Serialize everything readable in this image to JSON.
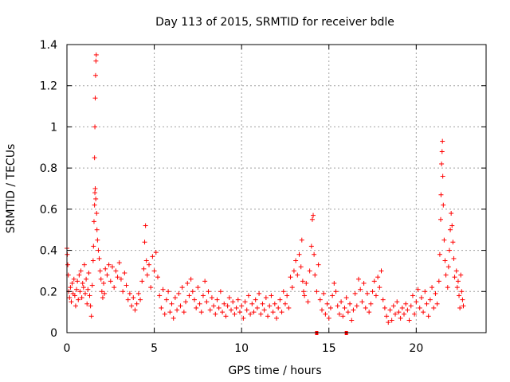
{
  "chart_data": {
    "type": "scatter",
    "title": "Day 113 of 2015, SRMTID for receiver bdle",
    "xlabel": "GPS time / hours",
    "ylabel": "SRMTID / TECUs",
    "xlim": [
      0,
      24
    ],
    "ylim": [
      0,
      1.4
    ],
    "xticks": [
      0,
      5,
      10,
      15,
      20
    ],
    "xtick_labels": [
      "0",
      "5",
      "10",
      "15",
      "20"
    ],
    "yticks": [
      0,
      0.2,
      0.4,
      0.6,
      0.8,
      1.0,
      1.2,
      1.4
    ],
    "ytick_labels": [
      "0",
      "0.2",
      "0.4",
      "0.6",
      "0.8",
      "1",
      "1.2",
      "1.4"
    ],
    "grid": true,
    "marker": "+",
    "color": "#ff0000",
    "series": [
      {
        "name": "SRMTID",
        "points": [
          [
            0.0,
            0.41
          ],
          [
            0.02,
            0.38
          ],
          [
            0.05,
            0.33
          ],
          [
            0.08,
            0.28
          ],
          [
            0.1,
            0.2
          ],
          [
            0.15,
            0.17
          ],
          [
            0.2,
            0.22
          ],
          [
            0.25,
            0.15
          ],
          [
            0.3,
            0.24
          ],
          [
            0.35,
            0.19
          ],
          [
            0.4,
            0.26
          ],
          [
            0.45,
            0.18
          ],
          [
            0.5,
            0.13
          ],
          [
            0.55,
            0.21
          ],
          [
            0.6,
            0.25
          ],
          [
            0.65,
            0.16
          ],
          [
            0.7,
            0.28
          ],
          [
            0.75,
            0.2
          ],
          [
            0.8,
            0.3
          ],
          [
            0.85,
            0.17
          ],
          [
            0.9,
            0.24
          ],
          [
            0.95,
            0.22
          ],
          [
            1.0,
            0.33
          ],
          [
            1.05,
            0.19
          ],
          [
            1.1,
            0.26
          ],
          [
            1.15,
            0.14
          ],
          [
            1.2,
            0.21
          ],
          [
            1.25,
            0.29
          ],
          [
            1.3,
            0.18
          ],
          [
            1.35,
            0.13
          ],
          [
            1.4,
            0.08
          ],
          [
            1.45,
            0.23
          ],
          [
            1.5,
            0.35
          ],
          [
            1.52,
            0.42
          ],
          [
            1.55,
            0.54
          ],
          [
            1.58,
            0.62
          ],
          [
            1.6,
            0.68
          ],
          [
            1.62,
            0.7
          ],
          [
            1.65,
            0.65
          ],
          [
            1.58,
            0.85
          ],
          [
            1.6,
            1.0
          ],
          [
            1.62,
            1.14
          ],
          [
            1.64,
            1.25
          ],
          [
            1.66,
            1.32
          ],
          [
            1.68,
            1.35
          ],
          [
            1.7,
            0.58
          ],
          [
            1.72,
            0.5
          ],
          [
            1.75,
            0.45
          ],
          [
            1.8,
            0.4
          ],
          [
            1.85,
            0.36
          ],
          [
            1.9,
            0.3
          ],
          [
            1.95,
            0.26
          ],
          [
            2.0,
            0.2
          ],
          [
            2.05,
            0.17
          ],
          [
            2.1,
            0.24
          ],
          [
            2.15,
            0.19
          ],
          [
            2.2,
            0.31
          ],
          [
            2.3,
            0.28
          ],
          [
            2.4,
            0.33
          ],
          [
            2.5,
            0.25
          ],
          [
            2.6,
            0.32
          ],
          [
            2.7,
            0.22
          ],
          [
            2.8,
            0.3
          ],
          [
            2.9,
            0.27
          ],
          [
            3.0,
            0.34
          ],
          [
            3.1,
            0.26
          ],
          [
            3.2,
            0.2
          ],
          [
            3.3,
            0.29
          ],
          [
            3.4,
            0.23
          ],
          [
            3.5,
            0.16
          ],
          [
            3.6,
            0.19
          ],
          [
            3.7,
            0.13
          ],
          [
            3.8,
            0.17
          ],
          [
            3.9,
            0.11
          ],
          [
            4.0,
            0.14
          ],
          [
            4.1,
            0.19
          ],
          [
            4.2,
            0.16
          ],
          [
            4.3,
            0.25
          ],
          [
            4.4,
            0.31
          ],
          [
            4.45,
            0.44
          ],
          [
            4.5,
            0.52
          ],
          [
            4.55,
            0.35
          ],
          [
            4.6,
            0.28
          ],
          [
            4.7,
            0.33
          ],
          [
            4.8,
            0.22
          ],
          [
            4.9,
            0.37
          ],
          [
            5.0,
            0.3
          ],
          [
            5.1,
            0.39
          ],
          [
            5.2,
            0.27
          ],
          [
            5.3,
            0.18
          ],
          [
            5.4,
            0.12
          ],
          [
            5.5,
            0.21
          ],
          [
            5.6,
            0.09
          ],
          [
            5.7,
            0.16
          ],
          [
            5.8,
            0.2
          ],
          [
            5.9,
            0.1
          ],
          [
            6.0,
            0.14
          ],
          [
            6.1,
            0.07
          ],
          [
            6.2,
            0.17
          ],
          [
            6.3,
            0.11
          ],
          [
            6.4,
            0.19
          ],
          [
            6.5,
            0.13
          ],
          [
            6.6,
            0.22
          ],
          [
            6.7,
            0.1
          ],
          [
            6.8,
            0.15
          ],
          [
            6.9,
            0.24
          ],
          [
            7.0,
            0.18
          ],
          [
            7.1,
            0.26
          ],
          [
            7.2,
            0.2
          ],
          [
            7.3,
            0.16
          ],
          [
            7.4,
            0.12
          ],
          [
            7.5,
            0.22
          ],
          [
            7.6,
            0.14
          ],
          [
            7.7,
            0.1
          ],
          [
            7.8,
            0.18
          ],
          [
            7.9,
            0.25
          ],
          [
            8.0,
            0.15
          ],
          [
            8.1,
            0.2
          ],
          [
            8.2,
            0.11
          ],
          [
            8.3,
            0.17
          ],
          [
            8.4,
            0.13
          ],
          [
            8.5,
            0.09
          ],
          [
            8.6,
            0.16
          ],
          [
            8.7,
            0.12
          ],
          [
            8.8,
            0.2
          ],
          [
            8.9,
            0.1
          ],
          [
            9.0,
            0.14
          ],
          [
            9.1,
            0.08
          ],
          [
            9.2,
            0.13
          ],
          [
            9.3,
            0.17
          ],
          [
            9.4,
            0.11
          ],
          [
            9.5,
            0.15
          ],
          [
            9.6,
            0.09
          ],
          [
            9.7,
            0.12
          ],
          [
            9.8,
            0.16
          ],
          [
            9.9,
            0.1
          ],
          [
            10.0,
            0.13
          ],
          [
            10.1,
            0.07
          ],
          [
            10.2,
            0.15
          ],
          [
            10.3,
            0.11
          ],
          [
            10.4,
            0.18
          ],
          [
            10.5,
            0.09
          ],
          [
            10.6,
            0.14
          ],
          [
            10.7,
            0.1
          ],
          [
            10.8,
            0.16
          ],
          [
            10.9,
            0.12
          ],
          [
            11.0,
            0.19
          ],
          [
            11.1,
            0.09
          ],
          [
            11.2,
            0.14
          ],
          [
            11.3,
            0.11
          ],
          [
            11.4,
            0.17
          ],
          [
            11.5,
            0.08
          ],
          [
            11.6,
            0.13
          ],
          [
            11.7,
            0.18
          ],
          [
            11.8,
            0.1
          ],
          [
            11.9,
            0.14
          ],
          [
            12.0,
            0.07
          ],
          [
            12.1,
            0.12
          ],
          [
            12.2,
            0.16
          ],
          [
            12.3,
            0.1
          ],
          [
            12.4,
            0.2
          ],
          [
            12.5,
            0.14
          ],
          [
            12.6,
            0.18
          ],
          [
            12.7,
            0.12
          ],
          [
            12.8,
            0.27
          ],
          [
            12.9,
            0.22
          ],
          [
            13.0,
            0.3
          ],
          [
            13.1,
            0.35
          ],
          [
            13.2,
            0.28
          ],
          [
            13.3,
            0.38
          ],
          [
            13.4,
            0.32
          ],
          [
            13.45,
            0.45
          ],
          [
            13.5,
            0.25
          ],
          [
            13.55,
            0.2
          ],
          [
            13.6,
            0.18
          ],
          [
            13.7,
            0.24
          ],
          [
            13.8,
            0.15
          ],
          [
            13.9,
            0.3
          ],
          [
            14.0,
            0.42
          ],
          [
            14.05,
            0.55
          ],
          [
            14.1,
            0.57
          ],
          [
            14.15,
            0.38
          ],
          [
            14.2,
            0.28
          ],
          [
            14.3,
            0.2
          ],
          [
            14.4,
            0.33
          ],
          [
            14.5,
            0.16
          ],
          [
            14.6,
            0.11
          ],
          [
            14.7,
            0.19
          ],
          [
            14.8,
            0.09
          ],
          [
            14.9,
            0.14
          ],
          [
            15.0,
            0.07
          ],
          [
            15.1,
            0.12
          ],
          [
            15.2,
            0.18
          ],
          [
            15.3,
            0.24
          ],
          [
            15.4,
            0.2
          ],
          [
            15.5,
            0.13
          ],
          [
            15.6,
            0.09
          ],
          [
            15.7,
            0.15
          ],
          [
            15.8,
            0.08
          ],
          [
            15.9,
            0.12
          ],
          [
            16.0,
            0.17
          ],
          [
            16.1,
            0.1
          ],
          [
            16.2,
            0.14
          ],
          [
            16.3,
            0.06
          ],
          [
            16.4,
            0.11
          ],
          [
            16.5,
            0.19
          ],
          [
            16.6,
            0.13
          ],
          [
            16.7,
            0.26
          ],
          [
            16.8,
            0.21
          ],
          [
            16.9,
            0.15
          ],
          [
            17.0,
            0.24
          ],
          [
            17.1,
            0.12
          ],
          [
            17.2,
            0.19
          ],
          [
            17.3,
            0.1
          ],
          [
            17.4,
            0.14
          ],
          [
            17.5,
            0.2
          ],
          [
            17.6,
            0.25
          ],
          [
            17.7,
            0.18
          ],
          [
            17.8,
            0.27
          ],
          [
            17.9,
            0.22
          ],
          [
            18.0,
            0.3
          ],
          [
            18.1,
            0.16
          ],
          [
            18.2,
            0.12
          ],
          [
            18.3,
            0.08
          ],
          [
            18.4,
            0.05
          ],
          [
            18.5,
            0.11
          ],
          [
            18.6,
            0.06
          ],
          [
            18.7,
            0.13
          ],
          [
            18.8,
            0.09
          ],
          [
            18.9,
            0.15
          ],
          [
            19.0,
            0.1
          ],
          [
            19.1,
            0.07
          ],
          [
            19.2,
            0.12
          ],
          [
            19.3,
            0.09
          ],
          [
            19.4,
            0.14
          ],
          [
            19.5,
            0.11
          ],
          [
            19.6,
            0.06
          ],
          [
            19.7,
            0.13
          ],
          [
            19.8,
            0.18
          ],
          [
            19.9,
            0.09
          ],
          [
            20.0,
            0.15
          ],
          [
            20.1,
            0.21
          ],
          [
            20.2,
            0.12
          ],
          [
            20.3,
            0.17
          ],
          [
            20.4,
            0.1
          ],
          [
            20.5,
            0.2
          ],
          [
            20.6,
            0.14
          ],
          [
            20.7,
            0.08
          ],
          [
            20.8,
            0.16
          ],
          [
            20.9,
            0.22
          ],
          [
            21.0,
            0.12
          ],
          [
            21.1,
            0.19
          ],
          [
            21.2,
            0.14
          ],
          [
            21.3,
            0.25
          ],
          [
            21.35,
            0.38
          ],
          [
            21.4,
            0.55
          ],
          [
            21.42,
            0.67
          ],
          [
            21.45,
            0.82
          ],
          [
            21.48,
            0.88
          ],
          [
            21.5,
            0.93
          ],
          [
            21.52,
            0.76
          ],
          [
            21.55,
            0.62
          ],
          [
            21.6,
            0.45
          ],
          [
            21.65,
            0.35
          ],
          [
            21.7,
            0.28
          ],
          [
            21.8,
            0.22
          ],
          [
            21.85,
            0.32
          ],
          [
            21.9,
            0.4
          ],
          [
            21.95,
            0.5
          ],
          [
            22.0,
            0.58
          ],
          [
            22.05,
            0.52
          ],
          [
            22.1,
            0.44
          ],
          [
            22.15,
            0.36
          ],
          [
            22.2,
            0.27
          ],
          [
            22.3,
            0.3
          ],
          [
            22.35,
            0.22
          ],
          [
            22.4,
            0.25
          ],
          [
            22.45,
            0.18
          ],
          [
            22.5,
            0.12
          ],
          [
            22.55,
            0.28
          ],
          [
            22.6,
            0.2
          ],
          [
            22.65,
            0.16
          ],
          [
            22.7,
            0.13
          ]
        ]
      }
    ],
    "axis_markers": [
      14.3,
      16.0
    ]
  }
}
